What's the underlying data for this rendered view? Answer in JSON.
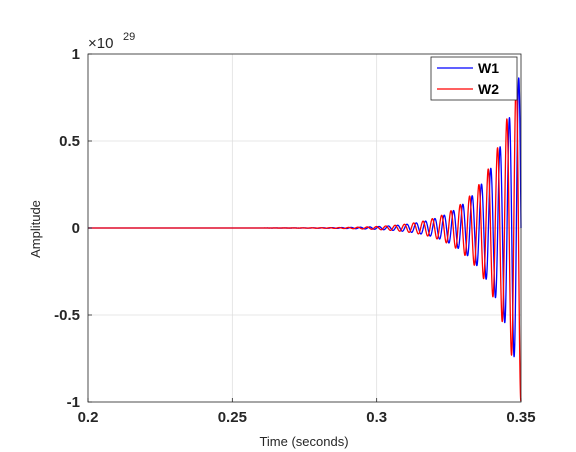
{
  "chart_data": {
    "type": "line",
    "title": "",
    "xlabel": "Time (seconds)",
    "ylabel": "Amplitude",
    "xlim": [
      0.2,
      0.35
    ],
    "ylim": [
      -1,
      1
    ],
    "y_exponent_prefix": "×10",
    "y_exponent_power": "29",
    "x_ticks": [
      0.2,
      0.25,
      0.3,
      0.35
    ],
    "x_tick_labels": [
      "0.2",
      "0.25",
      "0.3",
      "0.35"
    ],
    "y_ticks": [
      1,
      0.5,
      0,
      -0.5,
      -1
    ],
    "y_tick_labels": [
      "1",
      "0.5",
      "0",
      "-0.5",
      "-1"
    ],
    "grid": true,
    "legend_position": "top-right",
    "series": [
      {
        "name": "W1",
        "color": "#0000ff",
        "description": "oscillation with exponentially growing envelope",
        "envelope_growth_start": 0.31,
        "final_amplitude": 0.93
      },
      {
        "name": "W2",
        "color": "#ff0000",
        "description": "oscillation with exponentially growing envelope",
        "envelope_growth_start": 0.31,
        "final_amplitude": 1.0
      }
    ]
  }
}
